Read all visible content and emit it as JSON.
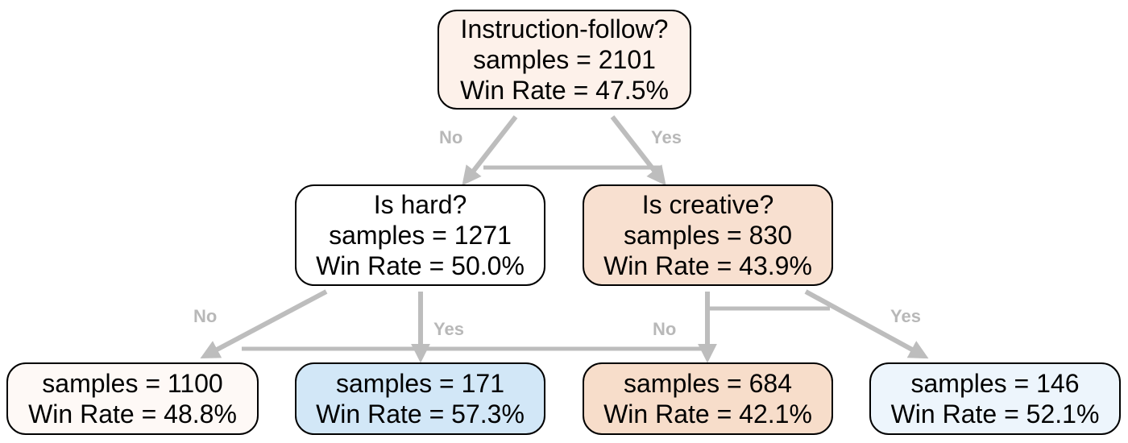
{
  "colors": {
    "edge": "#bdbdbd",
    "edge_label": "#b8b8b8",
    "border": "#000000"
  },
  "nodes": {
    "root": {
      "question": "Instruction-follow?",
      "samples": "samples = 2101",
      "win_rate": "Win Rate = 47.5%",
      "fill": "#fdf1ea"
    },
    "hard": {
      "question": "Is hard?",
      "samples": "samples = 1271",
      "win_rate": "Win Rate = 50.0%",
      "fill": "#ffffff"
    },
    "creative": {
      "question": "Is creative?",
      "samples": "samples = 830",
      "win_rate": "Win Rate = 43.9%",
      "fill": "#f8e0d0"
    },
    "leaf_hard_no": {
      "samples": "samples = 1100",
      "win_rate": "Win Rate = 48.8%",
      "fill": "#fef9f6"
    },
    "leaf_hard_yes": {
      "samples": "samples = 171",
      "win_rate": "Win Rate = 57.3%",
      "fill": "#d2e7f7"
    },
    "leaf_creative_no": {
      "samples": "samples = 684",
      "win_rate": "Win Rate = 42.1%",
      "fill": "#f7ddca"
    },
    "leaf_creative_yes": {
      "samples": "samples = 146",
      "win_rate": "Win Rate = 52.1%",
      "fill": "#edf5fc"
    }
  },
  "edge_labels": {
    "root_hard": "No",
    "root_creative": "Yes",
    "hard_no": "No",
    "hard_yes": "Yes",
    "creative_no": "No",
    "creative_yes": "Yes"
  }
}
